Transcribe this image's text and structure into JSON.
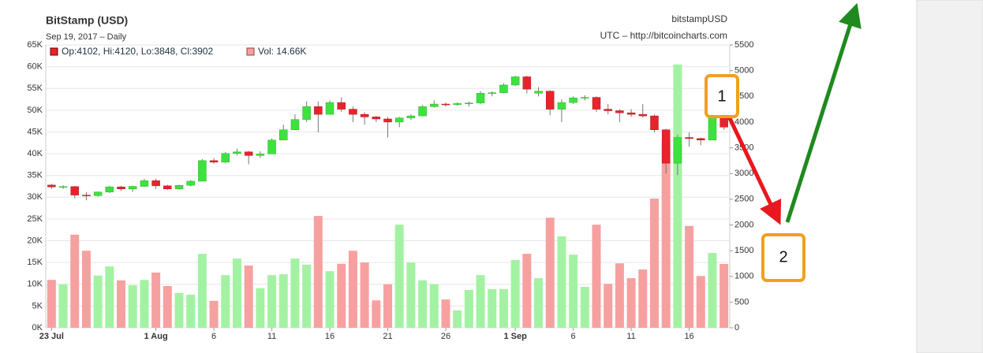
{
  "chart_data": {
    "type": "candlestick",
    "title": "BitStamp (USD)",
    "subtitle": "Sep 19, 2017 – Daily",
    "symbol": "bitstampUSD",
    "source": "UTC – http://bitcoincharts.com",
    "legend_price": "Op:4102, Hi:4120, Lo:3848, Cl:3902",
    "legend_volume": "Vol: 14.66K",
    "categories": [
      "23 Jul",
      null,
      null,
      null,
      null,
      null,
      null,
      null,
      null,
      "1 Aug",
      null,
      null,
      null,
      null,
      "6",
      null,
      null,
      null,
      null,
      "11",
      null,
      null,
      null,
      null,
      "16",
      null,
      null,
      null,
      null,
      "21",
      null,
      null,
      null,
      null,
      "26",
      null,
      null,
      null,
      null,
      null,
      "1 Sep",
      null,
      null,
      null,
      null,
      "6",
      null,
      null,
      null,
      null,
      "11",
      null,
      null,
      null,
      null,
      "16",
      null,
      null,
      null
    ],
    "open": [
      2775,
      2740,
      2745,
      2580,
      2570,
      2640,
      2740,
      2700,
      2750,
      2860,
      2760,
      2700,
      2770,
      2850,
      3250,
      3220,
      3390,
      3420,
      3350,
      3380,
      3650,
      3850,
      4050,
      4300,
      4150,
      4380,
      4250,
      4150,
      4100,
      4060,
      4000,
      4080,
      4120,
      4300,
      4350,
      4340,
      4360,
      4370,
      4560,
      4570,
      4720,
      4880,
      4560,
      4600,
      4250,
      4380,
      4470,
      4480,
      4250,
      4220,
      4180,
      4150,
      4120,
      3850,
      3200,
      3700,
      3680,
      3650,
      4102
    ],
    "high": [
      2800,
      2770,
      2760,
      2640,
      2650,
      2760,
      2760,
      2760,
      2900,
      2900,
      2780,
      2780,
      2870,
      3280,
      3300,
      3420,
      3480,
      3440,
      3430,
      3680,
      3950,
      4150,
      4400,
      4400,
      4420,
      4480,
      4300,
      4190,
      4120,
      4100,
      4100,
      4150,
      4330,
      4420,
      4380,
      4380,
      4400,
      4600,
      4600,
      4750,
      4900,
      4900,
      4680,
      4620,
      4440,
      4500,
      4520,
      4500,
      4350,
      4250,
      4250,
      4350,
      4150,
      3870,
      3750,
      3800,
      3700,
      4150,
      4120
    ],
    "low": [
      2700,
      2700,
      2520,
      2480,
      2550,
      2620,
      2660,
      2640,
      2740,
      2700,
      2680,
      2690,
      2750,
      2850,
      3190,
      3200,
      3350,
      3180,
      3300,
      3380,
      3650,
      3850,
      4000,
      3800,
      4150,
      4200,
      4000,
      3950,
      4000,
      3700,
      3900,
      4040,
      4110,
      4280,
      4300,
      4320,
      4300,
      4350,
      4500,
      4560,
      4700,
      4560,
      4500,
      4130,
      4000,
      4350,
      4420,
      4200,
      4150,
      4000,
      4100,
      4090,
      3800,
      3000,
      2970,
      3520,
      3550,
      3650,
      3848
    ],
    "close": [
      2740,
      2745,
      2580,
      2570,
      2640,
      2740,
      2700,
      2750,
      2860,
      2760,
      2700,
      2770,
      2850,
      3250,
      3220,
      3390,
      3420,
      3350,
      3380,
      3650,
      3850,
      4050,
      4300,
      4150,
      4380,
      4250,
      4150,
      4100,
      4060,
      4000,
      4080,
      4120,
      4300,
      4350,
      4340,
      4360,
      4370,
      4560,
      4570,
      4720,
      4880,
      4640,
      4600,
      4250,
      4380,
      4470,
      4480,
      4250,
      4220,
      4180,
      4150,
      4120,
      3850,
      3200,
      3700,
      3680,
      3650,
      4102,
      3902
    ],
    "volume": [
      11000,
      10000,
      21400,
      17700,
      12000,
      14100,
      10900,
      9800,
      11000,
      12700,
      9600,
      8000,
      7600,
      17000,
      6200,
      12100,
      15900,
      14300,
      9100,
      12100,
      12300,
      15900,
      14500,
      25700,
      13000,
      14700,
      17700,
      15000,
      6300,
      10000,
      23700,
      15000,
      10900,
      10000,
      6500,
      4000,
      8700,
      12100,
      8900,
      8900,
      15600,
      17000,
      11400,
      25300,
      21000,
      16800,
      9400,
      23700,
      10100,
      14800,
      11400,
      13400,
      29700,
      43000,
      60500,
      23400,
      11900,
      17200,
      14660
    ],
    "up_color": "#3ee23e",
    "down_color": "#e8232b",
    "volume_up_color": "#a3f2a3",
    "volume_down_color": "#f7a0a0",
    "ylim": [
      0,
      65000
    ],
    "yticks": [
      {
        "value": 0,
        "label": "0K"
      },
      {
        "value": 5000,
        "label": "5K"
      },
      {
        "value": 10000,
        "label": "10K"
      },
      {
        "value": 15000,
        "label": "15K"
      },
      {
        "value": 20000,
        "label": "20K"
      },
      {
        "value": 25000,
        "label": "25K"
      },
      {
        "value": 30000,
        "label": "30K"
      },
      {
        "value": 35000,
        "label": "35K"
      },
      {
        "value": 40000,
        "label": "40K"
      },
      {
        "value": 45000,
        "label": "45K"
      },
      {
        "value": 50000,
        "label": "50K"
      },
      {
        "value": 55000,
        "label": "55K"
      },
      {
        "value": 60000,
        "label": "60K"
      },
      {
        "value": 65000,
        "label": "65K"
      }
    ],
    "y2lim": [
      0,
      5500
    ],
    "y2ticks": [
      0,
      500,
      1000,
      1500,
      2000,
      2500,
      3000,
      3500,
      4000,
      4500,
      5000,
      5500
    ],
    "grid": true
  },
  "annotations": [
    "1",
    "2"
  ]
}
